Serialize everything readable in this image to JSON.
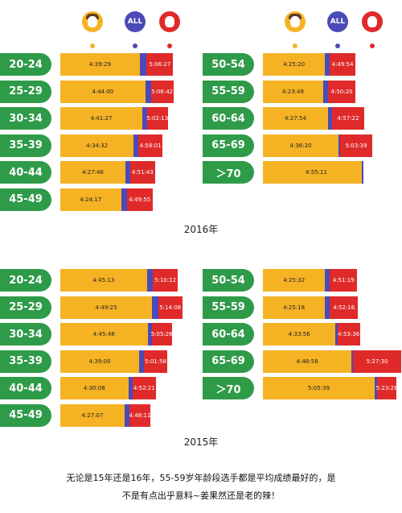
{
  "legend": {
    "all_label": "ALL"
  },
  "colors": {
    "male": "#f5b324",
    "all": "#4a4ab8",
    "female": "#e02a2a",
    "age": "#2e9b48"
  },
  "chart_data": [
    {
      "type": "bar",
      "title": "2016年",
      "categories": [
        "20-24",
        "25-29",
        "30-34",
        "35-39",
        "40-44",
        "45-49",
        "50-54",
        "55-59",
        "60-64",
        "65-69",
        ">70"
      ],
      "series": [
        {
          "values": [
            "4:39:29",
            "4:44:00",
            "4:41:27",
            "4:34:32",
            "4:27:46",
            "4:24:17",
            "4:25:20",
            "4:23:49",
            "4:27:54",
            "4:36:20",
            "4:55:11"
          ]
        },
        {
          "name": "ALL",
          "values": [
            "4:45:03",
            "4:48:29",
            "4:45:16",
            "4:38:11",
            "4:31:46",
            "4:28:50",
            "4:29:24",
            "4:27:33",
            "4:30:58",
            "4:37:36",
            "4:55:11"
          ]
        },
        {
          "values": [
            "5:06:27",
            "5:06:42",
            "5:02:13",
            "4:58:01",
            "4:51:43",
            "4:49:55",
            "4:49:54",
            "4:50:20",
            "4:57:22",
            "5:03:39",
            ""
          ]
        }
      ]
    },
    {
      "type": "bar",
      "title": "2015年",
      "categories": [
        "20-24",
        "25-29",
        "30-34",
        "35-39",
        "40-44",
        "45-49",
        "50-54",
        "55-59",
        "60-64",
        "65-69",
        ">70"
      ],
      "series": [
        {
          "values": [
            "4:45:13",
            "4:49:25",
            "4:45:48",
            "4:39:00",
            "4:30:08",
            "4:27:07",
            "4:25:32",
            "4:25:18",
            "4:33:56",
            "4:46:58",
            "5:05:39"
          ]
        },
        {
          "name": "ALL",
          "values": [
            "4:50:13",
            "4:54:16",
            "4:49:11",
            "4:42:39",
            "4:33:47",
            "4:30:55",
            "4:29:26",
            "4:29:05",
            "4:35:33",
            "4:47:49",
            "5:07:30"
          ]
        },
        {
          "values": [
            "5:10:12",
            "5:14:08",
            "5:05:26",
            "5:01:58",
            "4:52:21",
            "4:48:11",
            "4:51:19",
            "4:52:16",
            "4:53:36",
            "5:27:30",
            "5:23:28"
          ]
        }
      ]
    }
  ],
  "caption": {
    "line1": "无论是15年还是16年，55-59岁年龄段选手都是平均成绩最好的，是",
    "line2": "不是有点出乎意料~姜果然还是老的辣！"
  }
}
